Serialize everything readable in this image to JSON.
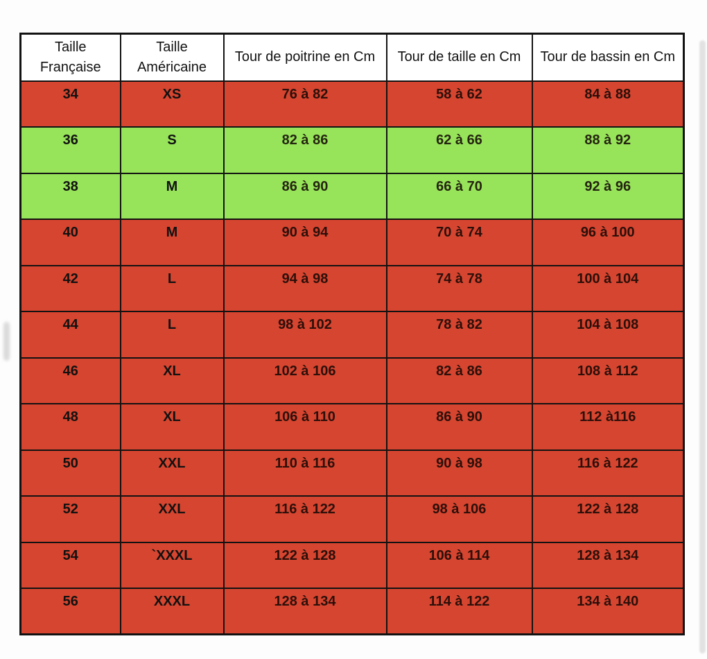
{
  "colors": {
    "red": "#d6452f",
    "green": "#97e45a",
    "border": "#121212"
  },
  "table": {
    "name": "tableau-correspondance-tailles",
    "headers": [
      "Taille Française",
      "Taille Américaine",
      "Tour de poitrine en Cm",
      "Tour de taille en Cm",
      "Tour de bassin en Cm"
    ],
    "rows": [
      {
        "fr": "34",
        "us": "XS",
        "poitrine": "76 à 82",
        "taille": "58 à 62",
        "bassin": "84 à 88",
        "highlight": "red"
      },
      {
        "fr": "36",
        "us": "S",
        "poitrine": "82 à 86",
        "taille": "62 à 66",
        "bassin": "88 à 92",
        "highlight": "green"
      },
      {
        "fr": "38",
        "us": "M",
        "poitrine": "86 à 90",
        "taille": "66 à 70",
        "bassin": "92 à 96",
        "highlight": "green"
      },
      {
        "fr": "40",
        "us": "M",
        "poitrine": "90 à 94",
        "taille": "70 à 74",
        "bassin": "96 à 100",
        "highlight": "red"
      },
      {
        "fr": "42",
        "us": "L",
        "poitrine": "94 à 98",
        "taille": "74 à 78",
        "bassin": "100 à 104",
        "highlight": "red"
      },
      {
        "fr": "44",
        "us": "L",
        "poitrine": "98 à 102",
        "taille": "78 à 82",
        "bassin": "104 à 108",
        "highlight": "red"
      },
      {
        "fr": "46",
        "us": "XL",
        "poitrine": "102 à 106",
        "taille": "82 à 86",
        "bassin": "108 à 112",
        "highlight": "red"
      },
      {
        "fr": "48",
        "us": "XL",
        "poitrine": "106 à 110",
        "taille": "86 à 90",
        "bassin": "112 à116",
        "highlight": "red"
      },
      {
        "fr": "50",
        "us": "XXL",
        "poitrine": "110 à 116",
        "taille": "90 à 98",
        "bassin": "116 à 122",
        "highlight": "red"
      },
      {
        "fr": "52",
        "us": "XXL",
        "poitrine": "116 à 122",
        "taille": "98 à 106",
        "bassin": "122 à 128",
        "highlight": "red"
      },
      {
        "fr": "54",
        "us": "`XXXL",
        "poitrine": "122 à 128",
        "taille": "106 à 114",
        "bassin": "128 à 134",
        "highlight": "red"
      },
      {
        "fr": "56",
        "us": "XXXL",
        "poitrine": "128 à 134",
        "taille": "114 à 122",
        "bassin": "134 à 140",
        "highlight": "red"
      }
    ]
  }
}
